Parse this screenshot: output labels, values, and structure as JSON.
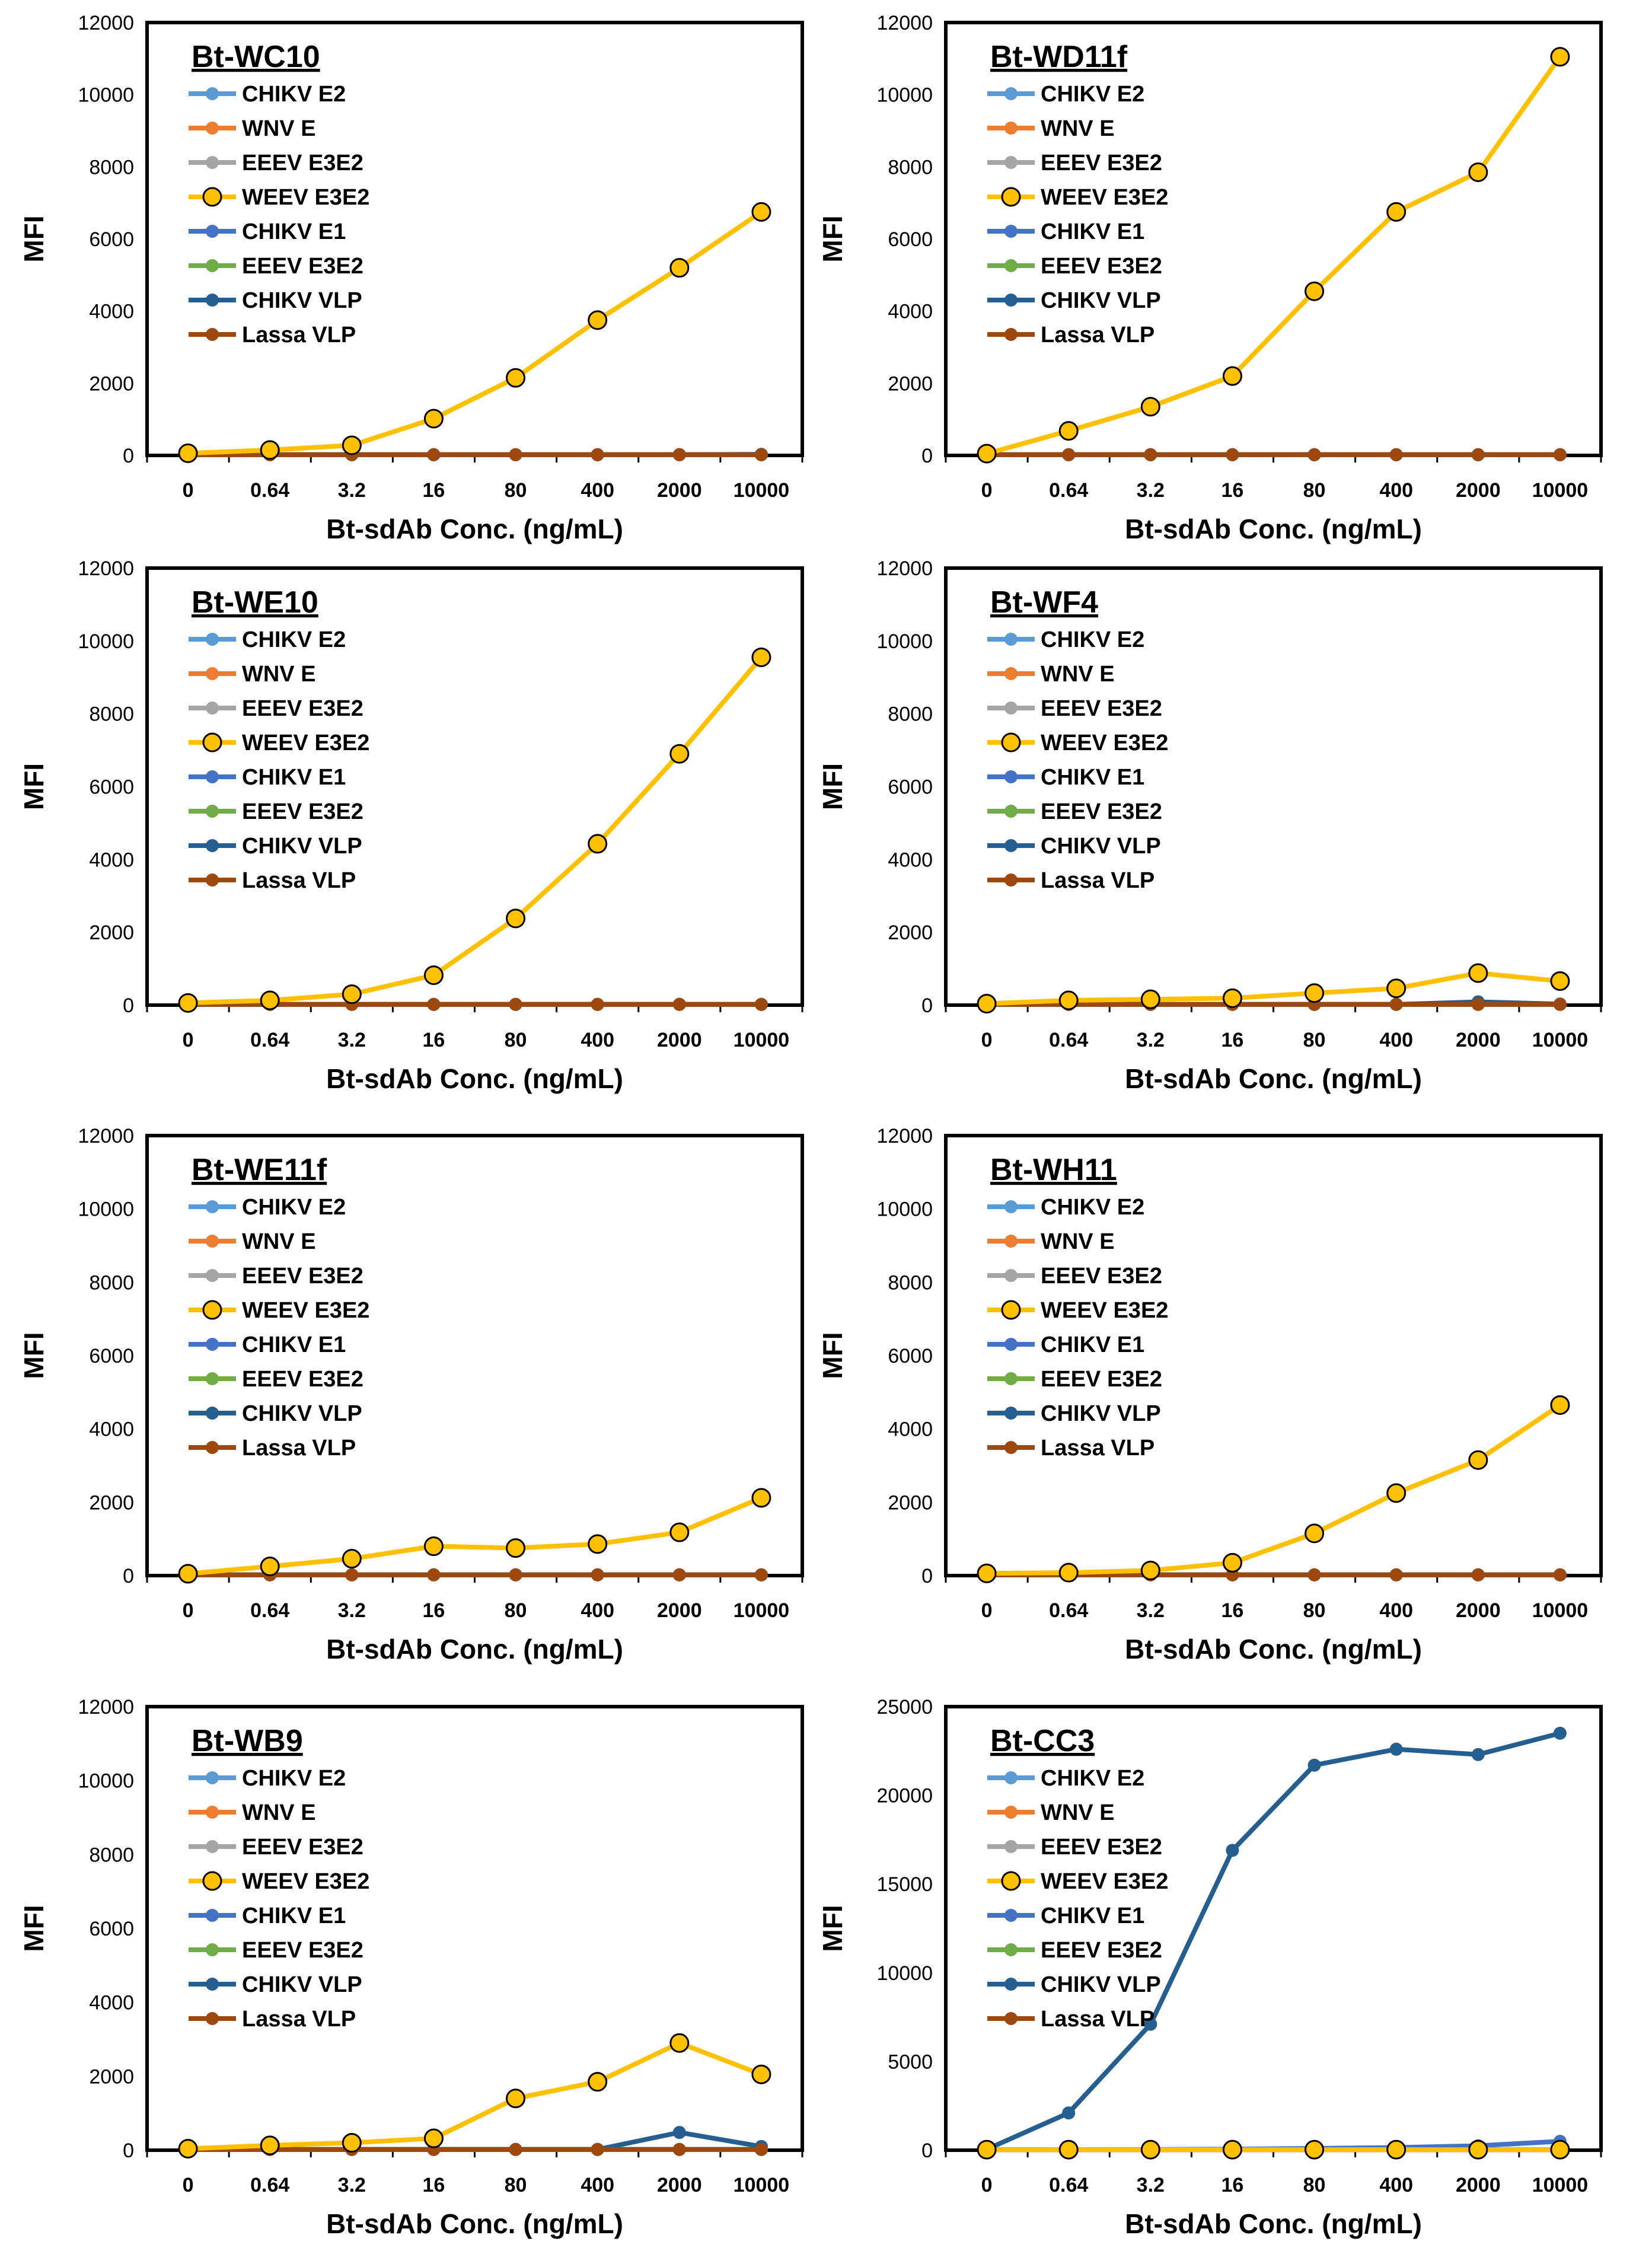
{
  "figure": {
    "series_names": [
      "CHIKV E2",
      "WNV E",
      "EEEV E3E2",
      "WEEV E3E2",
      "CHIKV E1",
      "EEEV E3E2",
      "CHIKV VLP",
      "Lassa VLP"
    ],
    "colors": {
      "CHIKV E2": "#5b9bd5",
      "WNV E": "#ed7d31",
      "EEEV E3E2 (gray)": "#a5a5a5",
      "WEEV E3E2": "#ffc000",
      "CHIKV E1": "#4472c4",
      "EEEV E3E2 (green)": "#70ad47",
      "CHIKV VLP": "#255e91",
      "Lassa VLP": "#9e480e"
    }
  },
  "chart_data": [
    {
      "type": "line",
      "title": "Bt-WC10",
      "xlabel": "Bt-sdAb Conc. (ng/mL)",
      "ylabel": "MFI",
      "categories": [
        "0",
        "0.64",
        "3.2",
        "16",
        "80",
        "400",
        "2000",
        "10000"
      ],
      "ylim": [
        0,
        12000
      ],
      "yticks": [
        0,
        2000,
        4000,
        6000,
        8000,
        10000,
        12000
      ],
      "legend_position": "top-left",
      "series": [
        {
          "name": "CHIKV E2",
          "values": [
            20,
            20,
            20,
            20,
            20,
            20,
            20,
            20
          ]
        },
        {
          "name": "WNV E",
          "values": [
            20,
            20,
            20,
            20,
            20,
            20,
            20,
            20
          ]
        },
        {
          "name": "EEEV E3E2",
          "values": [
            20,
            20,
            20,
            20,
            20,
            20,
            20,
            20
          ]
        },
        {
          "name": "WEEV E3E2",
          "values": [
            60,
            150,
            280,
            1020,
            2150,
            3750,
            5200,
            6750
          ]
        },
        {
          "name": "CHIKV E1",
          "values": [
            20,
            20,
            20,
            20,
            20,
            20,
            20,
            20
          ]
        },
        {
          "name": "EEEV E3E2",
          "values": [
            20,
            20,
            20,
            20,
            20,
            20,
            20,
            20
          ]
        },
        {
          "name": "CHIKV VLP",
          "values": [
            20,
            20,
            20,
            20,
            20,
            20,
            20,
            30
          ]
        },
        {
          "name": "Lassa VLP",
          "values": [
            20,
            20,
            20,
            20,
            20,
            20,
            20,
            20
          ]
        }
      ]
    },
    {
      "type": "line",
      "title": "Bt-WD11f",
      "xlabel": "Bt-sdAb Conc. (ng/mL)",
      "ylabel": "MFI",
      "categories": [
        "0",
        "0.64",
        "3.2",
        "16",
        "80",
        "400",
        "2000",
        "10000"
      ],
      "ylim": [
        0,
        12000
      ],
      "yticks": [
        0,
        2000,
        4000,
        6000,
        8000,
        10000,
        12000
      ],
      "legend_position": "top-left",
      "series": [
        {
          "name": "CHIKV E2",
          "values": [
            20,
            20,
            20,
            20,
            20,
            20,
            20,
            20
          ]
        },
        {
          "name": "WNV E",
          "values": [
            20,
            20,
            20,
            20,
            20,
            20,
            20,
            20
          ]
        },
        {
          "name": "EEEV E3E2",
          "values": [
            20,
            20,
            20,
            20,
            20,
            20,
            20,
            20
          ]
        },
        {
          "name": "WEEV E3E2",
          "values": [
            50,
            680,
            1350,
            2200,
            4550,
            6750,
            7850,
            11050
          ]
        },
        {
          "name": "CHIKV E1",
          "values": [
            20,
            20,
            20,
            20,
            20,
            20,
            20,
            20
          ]
        },
        {
          "name": "EEEV E3E2",
          "values": [
            20,
            20,
            20,
            20,
            20,
            20,
            20,
            20
          ]
        },
        {
          "name": "CHIKV VLP",
          "values": [
            20,
            20,
            20,
            20,
            20,
            20,
            20,
            20
          ]
        },
        {
          "name": "Lassa VLP",
          "values": [
            20,
            20,
            20,
            20,
            20,
            20,
            20,
            20
          ]
        }
      ]
    },
    {
      "type": "line",
      "title": "Bt-WE10",
      "xlabel": "Bt-sdAb Conc. (ng/mL)",
      "ylabel": "MFI",
      "categories": [
        "0",
        "0.64",
        "3.2",
        "16",
        "80",
        "400",
        "2000",
        "10000"
      ],
      "ylim": [
        0,
        12000
      ],
      "yticks": [
        0,
        2000,
        4000,
        6000,
        8000,
        10000,
        12000
      ],
      "legend_position": "top-left",
      "series": [
        {
          "name": "CHIKV E2",
          "values": [
            20,
            20,
            20,
            20,
            20,
            20,
            20,
            20
          ]
        },
        {
          "name": "WNV E",
          "values": [
            20,
            20,
            20,
            20,
            20,
            20,
            20,
            20
          ]
        },
        {
          "name": "EEEV E3E2",
          "values": [
            20,
            20,
            20,
            20,
            20,
            20,
            20,
            20
          ]
        },
        {
          "name": "WEEV E3E2",
          "values": [
            60,
            130,
            300,
            820,
            2380,
            4430,
            6900,
            9550
          ]
        },
        {
          "name": "CHIKV E1",
          "values": [
            20,
            20,
            20,
            20,
            20,
            20,
            20,
            20
          ]
        },
        {
          "name": "EEEV E3E2",
          "values": [
            20,
            20,
            20,
            20,
            20,
            20,
            20,
            20
          ]
        },
        {
          "name": "CHIKV VLP",
          "values": [
            20,
            20,
            20,
            20,
            20,
            20,
            20,
            20
          ]
        },
        {
          "name": "Lassa VLP",
          "values": [
            20,
            20,
            20,
            20,
            20,
            20,
            20,
            20
          ]
        }
      ]
    },
    {
      "type": "line",
      "title": "Bt-WF4",
      "xlabel": "Bt-sdAb Conc. (ng/mL)",
      "ylabel": "MFI",
      "categories": [
        "0",
        "0.64",
        "3.2",
        "16",
        "80",
        "400",
        "2000",
        "10000"
      ],
      "ylim": [
        0,
        12000
      ],
      "yticks": [
        0,
        2000,
        4000,
        6000,
        8000,
        10000,
        12000
      ],
      "legend_position": "top-left",
      "series": [
        {
          "name": "CHIKV E2",
          "values": [
            20,
            20,
            20,
            20,
            20,
            20,
            20,
            20
          ]
        },
        {
          "name": "WNV E",
          "values": [
            20,
            20,
            20,
            20,
            20,
            20,
            20,
            20
          ]
        },
        {
          "name": "EEEV E3E2",
          "values": [
            20,
            20,
            20,
            20,
            20,
            20,
            20,
            20
          ]
        },
        {
          "name": "WEEV E3E2",
          "values": [
            40,
            130,
            160,
            190,
            330,
            460,
            880,
            660
          ]
        },
        {
          "name": "CHIKV E1",
          "values": [
            20,
            20,
            20,
            20,
            20,
            20,
            20,
            20
          ]
        },
        {
          "name": "EEEV E3E2",
          "values": [
            20,
            20,
            20,
            20,
            20,
            20,
            20,
            20
          ]
        },
        {
          "name": "CHIKV VLP",
          "values": [
            20,
            20,
            20,
            20,
            20,
            20,
            90,
            30
          ]
        },
        {
          "name": "Lassa VLP",
          "values": [
            20,
            20,
            20,
            20,
            20,
            20,
            20,
            20
          ]
        }
      ]
    },
    {
      "type": "line",
      "title": "Bt-WE11f",
      "xlabel": "Bt-sdAb Conc. (ng/mL)",
      "ylabel": "MFI",
      "categories": [
        "0",
        "0.64",
        "3.2",
        "16",
        "80",
        "400",
        "2000",
        "10000"
      ],
      "ylim": [
        0,
        12000
      ],
      "yticks": [
        0,
        2000,
        4000,
        6000,
        8000,
        10000,
        12000
      ],
      "legend_position": "top-left",
      "series": [
        {
          "name": "CHIKV E2",
          "values": [
            20,
            20,
            20,
            20,
            20,
            20,
            20,
            20
          ]
        },
        {
          "name": "WNV E",
          "values": [
            20,
            20,
            20,
            20,
            20,
            20,
            20,
            20
          ]
        },
        {
          "name": "EEEV E3E2",
          "values": [
            20,
            20,
            20,
            20,
            20,
            20,
            20,
            20
          ]
        },
        {
          "name": "WEEV E3E2",
          "values": [
            50,
            250,
            460,
            800,
            750,
            860,
            1180,
            2120
          ]
        },
        {
          "name": "CHIKV E1",
          "values": [
            20,
            20,
            20,
            20,
            20,
            20,
            20,
            20
          ]
        },
        {
          "name": "EEEV E3E2",
          "values": [
            20,
            20,
            20,
            20,
            20,
            20,
            20,
            20
          ]
        },
        {
          "name": "CHIKV VLP",
          "values": [
            20,
            20,
            20,
            20,
            20,
            20,
            20,
            20
          ]
        },
        {
          "name": "Lassa VLP",
          "values": [
            20,
            20,
            20,
            20,
            20,
            20,
            20,
            20
          ]
        }
      ]
    },
    {
      "type": "line",
      "title": "Bt-WH11",
      "xlabel": "Bt-sdAb Conc. (ng/mL)",
      "ylabel": "MFI",
      "categories": [
        "0",
        "0.64",
        "3.2",
        "16",
        "80",
        "400",
        "2000",
        "10000"
      ],
      "ylim": [
        0,
        12000
      ],
      "yticks": [
        0,
        2000,
        4000,
        6000,
        8000,
        10000,
        12000
      ],
      "legend_position": "top-left",
      "series": [
        {
          "name": "CHIKV E2",
          "values": [
            20,
            20,
            20,
            20,
            20,
            20,
            20,
            20
          ]
        },
        {
          "name": "WNV E",
          "values": [
            20,
            20,
            20,
            20,
            20,
            20,
            20,
            20
          ]
        },
        {
          "name": "EEEV E3E2",
          "values": [
            20,
            20,
            20,
            20,
            20,
            20,
            20,
            20
          ]
        },
        {
          "name": "WEEV E3E2",
          "values": [
            60,
            80,
            140,
            350,
            1150,
            2250,
            3150,
            4650
          ]
        },
        {
          "name": "CHIKV E1",
          "values": [
            20,
            20,
            20,
            20,
            20,
            20,
            20,
            20
          ]
        },
        {
          "name": "EEEV E3E2",
          "values": [
            20,
            20,
            20,
            20,
            20,
            20,
            20,
            20
          ]
        },
        {
          "name": "CHIKV VLP",
          "values": [
            20,
            20,
            20,
            20,
            20,
            20,
            20,
            20
          ]
        },
        {
          "name": "Lassa VLP",
          "values": [
            20,
            20,
            20,
            20,
            20,
            20,
            20,
            20
          ]
        }
      ]
    },
    {
      "type": "line",
      "title": "Bt-WB9",
      "xlabel": "Bt-sdAb Conc. (ng/mL)",
      "ylabel": "MFI",
      "categories": [
        "0",
        "0.64",
        "3.2",
        "16",
        "80",
        "400",
        "2000",
        "10000"
      ],
      "ylim": [
        0,
        12000
      ],
      "yticks": [
        0,
        2000,
        4000,
        6000,
        8000,
        10000,
        12000
      ],
      "legend_position": "top-left",
      "series": [
        {
          "name": "CHIKV E2",
          "values": [
            20,
            20,
            20,
            20,
            20,
            20,
            20,
            20
          ]
        },
        {
          "name": "WNV E",
          "values": [
            20,
            20,
            20,
            20,
            20,
            20,
            20,
            20
          ]
        },
        {
          "name": "EEEV E3E2",
          "values": [
            20,
            20,
            20,
            20,
            20,
            20,
            20,
            20
          ]
        },
        {
          "name": "WEEV E3E2",
          "values": [
            40,
            130,
            200,
            320,
            1400,
            1850,
            2900,
            2050
          ]
        },
        {
          "name": "CHIKV E1",
          "values": [
            20,
            20,
            20,
            20,
            20,
            20,
            20,
            20
          ]
        },
        {
          "name": "EEEV E3E2",
          "values": [
            20,
            20,
            20,
            20,
            20,
            20,
            20,
            20
          ]
        },
        {
          "name": "CHIKV VLP",
          "values": [
            20,
            20,
            20,
            20,
            20,
            20,
            480,
            100
          ]
        },
        {
          "name": "Lassa VLP",
          "values": [
            20,
            20,
            20,
            20,
            20,
            20,
            20,
            20
          ]
        }
      ]
    },
    {
      "type": "line",
      "title": "Bt-CC3",
      "xlabel": "Bt-sdAb Conc. (ng/mL)",
      "ylabel": "MFI",
      "categories": [
        "0",
        "0.64",
        "3.2",
        "16",
        "80",
        "400",
        "2000",
        "10000"
      ],
      "ylim": [
        0,
        25000
      ],
      "yticks": [
        0,
        5000,
        10000,
        15000,
        20000,
        25000
      ],
      "legend_position": "top-left",
      "series": [
        {
          "name": "CHIKV E2",
          "values": [
            30,
            30,
            30,
            30,
            30,
            30,
            30,
            30
          ]
        },
        {
          "name": "WNV E",
          "values": [
            30,
            30,
            30,
            30,
            30,
            30,
            30,
            30
          ]
        },
        {
          "name": "EEEV E3E2",
          "values": [
            30,
            30,
            30,
            30,
            30,
            30,
            30,
            30
          ]
        },
        {
          "name": "WEEV E3E2",
          "values": [
            30,
            30,
            30,
            30,
            30,
            30,
            30,
            30
          ]
        },
        {
          "name": "CHIKV E1",
          "values": [
            30,
            30,
            40,
            60,
            100,
            150,
            250,
            500
          ]
        },
        {
          "name": "EEEV E3E2",
          "values": [
            30,
            30,
            30,
            30,
            30,
            30,
            30,
            30
          ]
        },
        {
          "name": "CHIKV VLP",
          "values": [
            50,
            2100,
            7100,
            16900,
            21700,
            22600,
            22300,
            23500
          ]
        },
        {
          "name": "Lassa VLP",
          "values": [
            30,
            30,
            30,
            30,
            30,
            30,
            30,
            30
          ]
        }
      ]
    }
  ]
}
